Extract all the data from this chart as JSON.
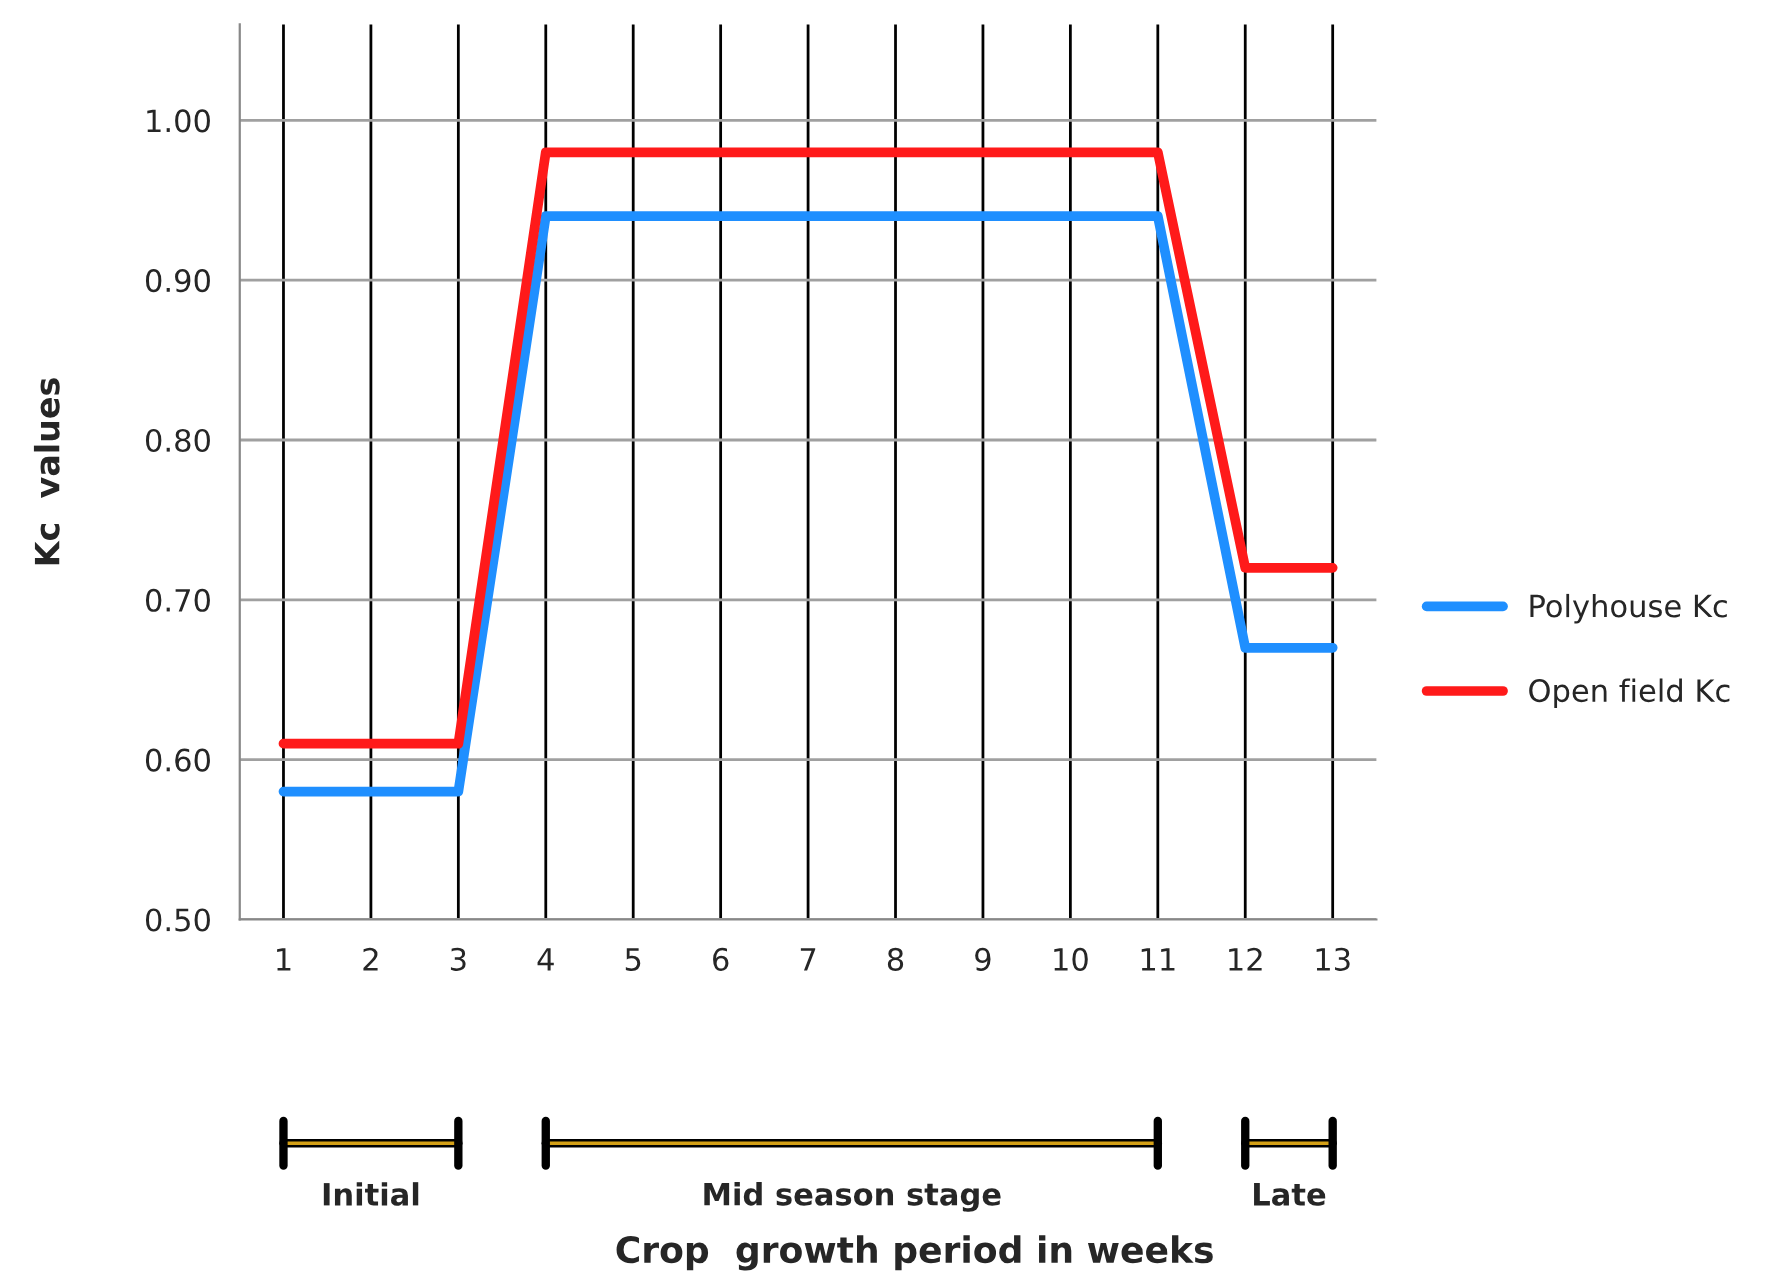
{
  "chart_data": {
    "type": "line",
    "ylabel": "Kc  values",
    "categories": [
      "1",
      "2",
      "3",
      "4",
      "5",
      "6",
      "7",
      "8",
      "9",
      "10",
      "11",
      "12",
      "13"
    ],
    "series": [
      {
        "name": "Polyhouse Kc",
        "color": "#1f8fff",
        "values": [
          0.58,
          0.58,
          0.58,
          0.94,
          0.94,
          0.94,
          0.94,
          0.94,
          0.94,
          0.94,
          0.94,
          0.67,
          0.67
        ]
      },
      {
        "name": "Open field Kc",
        "color": "#ff1a1a",
        "values": [
          0.61,
          0.61,
          0.61,
          0.98,
          0.98,
          0.98,
          0.98,
          0.98,
          0.98,
          0.98,
          0.98,
          0.72,
          0.72
        ]
      }
    ],
    "ylim": [
      0.5,
      1.06
    ],
    "yticks": [
      {
        "value": 0.5,
        "label": "0.50"
      },
      {
        "value": 0.6,
        "label": "0.60"
      },
      {
        "value": 0.7,
        "label": "0.70"
      },
      {
        "value": 0.8,
        "label": "0.80"
      },
      {
        "value": 0.9,
        "label": "0.90"
      },
      {
        "value": 1.0,
        "label": "1.00"
      }
    ],
    "grid": true,
    "legend": "right",
    "marker": "none",
    "line_style": "solid",
    "annotations": [
      "Initial",
      "Mid season stage",
      "Late",
      "Crop  growth period in weeks"
    ]
  }
}
